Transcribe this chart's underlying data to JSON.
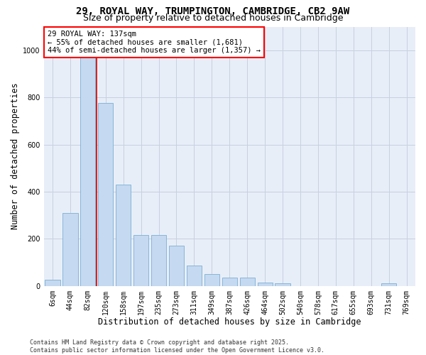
{
  "title_line1": "29, ROYAL WAY, TRUMPINGTON, CAMBRIDGE, CB2 9AW",
  "title_line2": "Size of property relative to detached houses in Cambridge",
  "xlabel": "Distribution of detached houses by size in Cambridge",
  "ylabel": "Number of detached properties",
  "categories": [
    "6sqm",
    "44sqm",
    "82sqm",
    "120sqm",
    "158sqm",
    "197sqm",
    "235sqm",
    "273sqm",
    "311sqm",
    "349sqm",
    "387sqm",
    "426sqm",
    "464sqm",
    "502sqm",
    "540sqm",
    "578sqm",
    "617sqm",
    "655sqm",
    "693sqm",
    "731sqm",
    "769sqm"
  ],
  "values": [
    25,
    310,
    980,
    775,
    430,
    215,
    215,
    170,
    88,
    50,
    35,
    35,
    15,
    10,
    0,
    0,
    0,
    0,
    0,
    10,
    0
  ],
  "bar_color": "#c5d9f0",
  "bar_edge_color": "#7bafd4",
  "vline_x": 2.5,
  "vline_color": "#cc0000",
  "annotation_text": "29 ROYAL WAY: 137sqm\n← 55% of detached houses are smaller (1,681)\n44% of semi-detached houses are larger (1,357) →",
  "ylim": [
    0,
    1100
  ],
  "yticks": [
    0,
    200,
    400,
    600,
    800,
    1000
  ],
  "grid_color": "#c8d0e0",
  "background_color": "#e8eef8",
  "footer_text": "Contains HM Land Registry data © Crown copyright and database right 2025.\nContains public sector information licensed under the Open Government Licence v3.0.",
  "title_fontsize": 10,
  "subtitle_fontsize": 9,
  "axis_label_fontsize": 8.5,
  "tick_fontsize": 7,
  "annotation_fontsize": 7.5,
  "footer_fontsize": 6
}
